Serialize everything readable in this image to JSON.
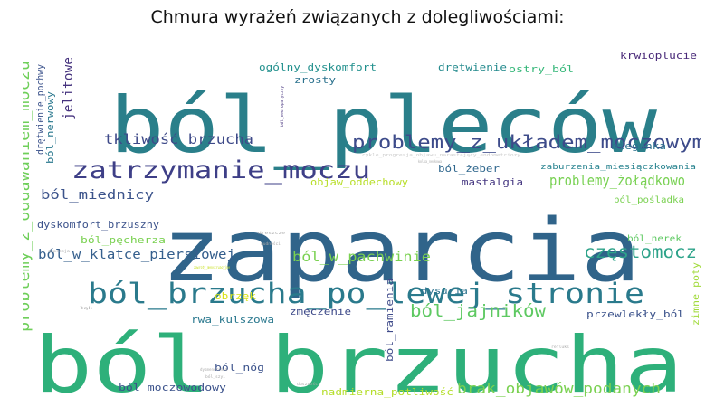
{
  "title": "Chmura wyrażeń związanych z dolegliwościami:",
  "words": [
    {
      "text": "zaparcia",
      "color": "#30648a"
    },
    {
      "text": "ból_pleców",
      "color": "#2a7f8a"
    },
    {
      "text": "ból_brzucha",
      "color": "#2eb07a"
    },
    {
      "text": "ból_brzucha_po_lewej_stronie",
      "color": "#2a7a8c"
    },
    {
      "text": "zatrzymanie_moczu",
      "color": "#3e3f87"
    },
    {
      "text": "problemy_z_układem_moczowym",
      "color": "#3d4b8a"
    },
    {
      "text": "problemy_z_oddawaniem_moczu",
      "color": "#6fcf5a"
    },
    {
      "text": "ból_jajników",
      "color": "#5ec962"
    },
    {
      "text": "częstomocz",
      "color": "#2ea38a"
    },
    {
      "text": "brak_objawów_podanych",
      "color": "#7ad151"
    },
    {
      "text": "problemy_żołądkowo",
      "color": "#78d152"
    },
    {
      "text": "tkliwość_brzucha",
      "color": "#3e4a89"
    },
    {
      "text": "ból_w_pachwinie",
      "color": "#7ad151"
    },
    {
      "text": "ból_miednicy",
      "color": "#3b538b"
    },
    {
      "text": "ból_w_klatce_piersiowej",
      "color": "#355f8d"
    },
    {
      "text": "jelitowe",
      "color": "#46337e"
    },
    {
      "text": "dyskomfort_brzuszny",
      "color": "#3b528b"
    },
    {
      "text": "ból_pęcherza",
      "color": "#7ad151"
    },
    {
      "text": "ogólny_dyskomfort",
      "color": "#21908d"
    },
    {
      "text": "zrosty",
      "color": "#2c728e"
    },
    {
      "text": "drętwienie",
      "color": "#238a8d"
    },
    {
      "text": "ostry_ból",
      "color": "#35b779"
    },
    {
      "text": "krwioplucie",
      "color": "#482878"
    },
    {
      "text": "drętwienie_pochwy",
      "color": "#3b528b"
    },
    {
      "text": "ból_nerwowy",
      "color": "#2a788e"
    },
    {
      "text": "mastalgia",
      "color": "#453781"
    },
    {
      "text": "ból_żeber",
      "color": "#31688e"
    },
    {
      "text": "zaburzenia_miesiączkowania",
      "color": "#26828e"
    },
    {
      "text": "biegunka",
      "color": "#2c728e"
    },
    {
      "text": "objaw_oddechowy",
      "color": "#b8de29"
    },
    {
      "text": "ból_pośladka",
      "color": "#7ad151"
    },
    {
      "text": "ból_nerek",
      "color": "#5ec962"
    },
    {
      "text": "dysuria",
      "color": "#2c728e"
    },
    {
      "text": "obrzęk",
      "color": "#d8e219"
    },
    {
      "text": "zimne_poty",
      "color": "#a0da39"
    },
    {
      "text": "przewlekły_ból",
      "color": "#3b528b"
    },
    {
      "text": "rwa_kulszowa",
      "color": "#2a788e"
    },
    {
      "text": "zmęczenie",
      "color": "#3e4a89"
    },
    {
      "text": "ból_ramienia",
      "color": "#3e4a89"
    },
    {
      "text": "ból_nóg",
      "color": "#3b528b"
    },
    {
      "text": "ból_moczowodowy",
      "color": "#3b528b"
    },
    {
      "text": "nadmierna_potliwość",
      "color": "#b5de2b"
    },
    {
      "text": "cykle_progresja_objawu_narastający_endometriozy",
      "color": "#cccccc"
    },
    {
      "text": "ból_neuropatyczny",
      "color": "#46337e"
    },
    {
      "text": "dreszcze",
      "color": "#aaaaaa"
    },
    {
      "text": "nudności",
      "color": "#aaaaaa"
    },
    {
      "text": "depresja",
      "color": "#aaaaaa"
    },
    {
      "text": "zawroty_menstruacyjne",
      "color": "#c8e020"
    },
    {
      "text": "łąk",
      "color": "#aaaaaa"
    },
    {
      "text": "dysmenorrhea",
      "color": "#aaaaaa"
    },
    {
      "text": "ból_szyi",
      "color": "#aaaaaa"
    },
    {
      "text": "duszności",
      "color": "#aaaaaa"
    },
    {
      "text": "refluks",
      "color": "#aaaaaa"
    },
    {
      "text": "kolka_nerkowa",
      "color": "#aaaaaa"
    }
  ]
}
